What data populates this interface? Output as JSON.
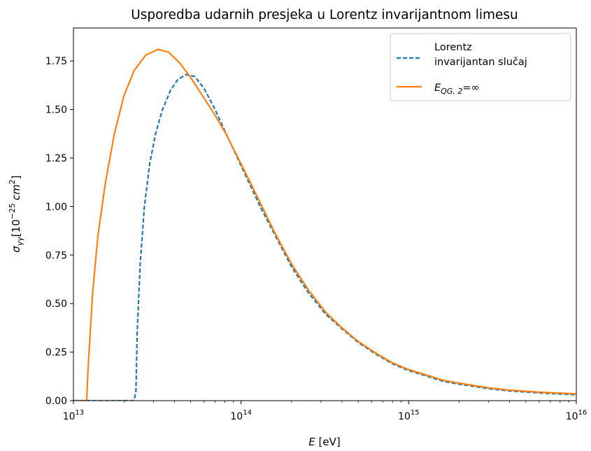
{
  "chart_data": {
    "type": "line",
    "title": "Usporedba udarnih presjeka u Lorentz invarijantnom limesu",
    "xlabel": {
      "var": "E",
      "unit": " [eV]"
    },
    "ylabel": {
      "sym": "σ",
      "sub": "γγ",
      "open": "[10",
      "exp": "−25",
      "unit": "cm",
      "unitexp": "2",
      "close": "]"
    },
    "xscale": "log",
    "xlim": [
      10000000000000.0,
      1e+16
    ],
    "ylim": [
      0,
      1.92
    ],
    "xticks": [
      {
        "value": 10000000000000.0,
        "base": "10",
        "exp": "13"
      },
      {
        "value": 100000000000000.0,
        "base": "10",
        "exp": "14"
      },
      {
        "value": 1000000000000000.0,
        "base": "10",
        "exp": "15"
      },
      {
        "value": 1e+16,
        "base": "10",
        "exp": "16"
      }
    ],
    "yticks": [
      {
        "value": 0.0,
        "label": "0.00"
      },
      {
        "value": 0.25,
        "label": "0.25"
      },
      {
        "value": 0.5,
        "label": "0.50"
      },
      {
        "value": 0.75,
        "label": "0.75"
      },
      {
        "value": 1.0,
        "label": "1.00"
      },
      {
        "value": 1.25,
        "label": "1.25"
      },
      {
        "value": 1.5,
        "label": "1.50"
      },
      {
        "value": 1.75,
        "label": "1.75"
      }
    ],
    "legend_position": "top-right",
    "series": [
      {
        "name": [
          "Lorentz",
          "invarijantan slučaj"
        ],
        "color": "#1f77b4",
        "style": "dashed",
        "points": [
          [
            10000000000000.0,
            0.0
          ],
          [
            15000000000000.0,
            0.0
          ],
          [
            23000000000000.0,
            0.0
          ],
          [
            23600000000000.0,
            0.05
          ],
          [
            24000000000000.0,
            0.35
          ],
          [
            25000000000000.0,
            0.7
          ],
          [
            26500000000000.0,
            1.0
          ],
          [
            28500000000000.0,
            1.22
          ],
          [
            31000000000000.0,
            1.38
          ],
          [
            34000000000000.0,
            1.5
          ],
          [
            38000000000000.0,
            1.6
          ],
          [
            42000000000000.0,
            1.655
          ],
          [
            47000000000000.0,
            1.68
          ],
          [
            53000000000000.0,
            1.67
          ],
          [
            60000000000000.0,
            1.61
          ],
          [
            70000000000000.0,
            1.5
          ],
          [
            80000000000000.0,
            1.39
          ],
          [
            100000000000000.0,
            1.21
          ],
          [
            130000000000000.0,
            1.0
          ],
          [
            160000000000000.0,
            0.85
          ],
          [
            200000000000000.0,
            0.69
          ],
          [
            250000000000000.0,
            0.56
          ],
          [
            320000000000000.0,
            0.445
          ],
          [
            400000000000000.0,
            0.37
          ],
          [
            500000000000000.0,
            0.3
          ],
          [
            650000000000000.0,
            0.235
          ],
          [
            800000000000000.0,
            0.19
          ],
          [
            1000000000000000.0,
            0.155
          ],
          [
            1300000000000000.0,
            0.125
          ],
          [
            1600000000000000.0,
            0.1
          ],
          [
            2000000000000000.0,
            0.085
          ],
          [
            3000000000000000.0,
            0.062
          ],
          [
            4000000000000000.0,
            0.05
          ],
          [
            6000000000000000.0,
            0.04
          ],
          [
            1e+16,
            0.03
          ]
        ]
      },
      {
        "name": "E_QG,2=∞",
        "label": {
          "base": "E",
          "sub": "QG, 2",
          "rest": "=∞"
        },
        "color": "#ff7f0e",
        "style": "solid",
        "points": [
          [
            10000000000000.0,
            0.0
          ],
          [
            11500000000000.0,
            0.0
          ],
          [
            12000000000000.0,
            0.0
          ],
          [
            12200000000000.0,
            0.15
          ],
          [
            13000000000000.0,
            0.55
          ],
          [
            14000000000000.0,
            0.85
          ],
          [
            15500000000000.0,
            1.12
          ],
          [
            17500000000000.0,
            1.37
          ],
          [
            20000000000000.0,
            1.57
          ],
          [
            23000000000000.0,
            1.7
          ],
          [
            27000000000000.0,
            1.78
          ],
          [
            32000000000000.0,
            1.81
          ],
          [
            37000000000000.0,
            1.795
          ],
          [
            43000000000000.0,
            1.74
          ],
          [
            50000000000000.0,
            1.665
          ],
          [
            60000000000000.0,
            1.56
          ],
          [
            70000000000000.0,
            1.47
          ],
          [
            80000000000000.0,
            1.385
          ],
          [
            100000000000000.0,
            1.22
          ],
          [
            130000000000000.0,
            1.02
          ],
          [
            160000000000000.0,
            0.86
          ],
          [
            200000000000000.0,
            0.705
          ],
          [
            250000000000000.0,
            0.575
          ],
          [
            320000000000000.0,
            0.455
          ],
          [
            400000000000000.0,
            0.375
          ],
          [
            500000000000000.0,
            0.305
          ],
          [
            650000000000000.0,
            0.24
          ],
          [
            800000000000000.0,
            0.195
          ],
          [
            1000000000000000.0,
            0.16
          ],
          [
            1300000000000000.0,
            0.13
          ],
          [
            1600000000000000.0,
            0.105
          ],
          [
            2000000000000000.0,
            0.09
          ],
          [
            3000000000000000.0,
            0.066
          ],
          [
            4000000000000000.0,
            0.054
          ],
          [
            6000000000000000.0,
            0.044
          ],
          [
            1e+16,
            0.035
          ]
        ]
      }
    ]
  }
}
